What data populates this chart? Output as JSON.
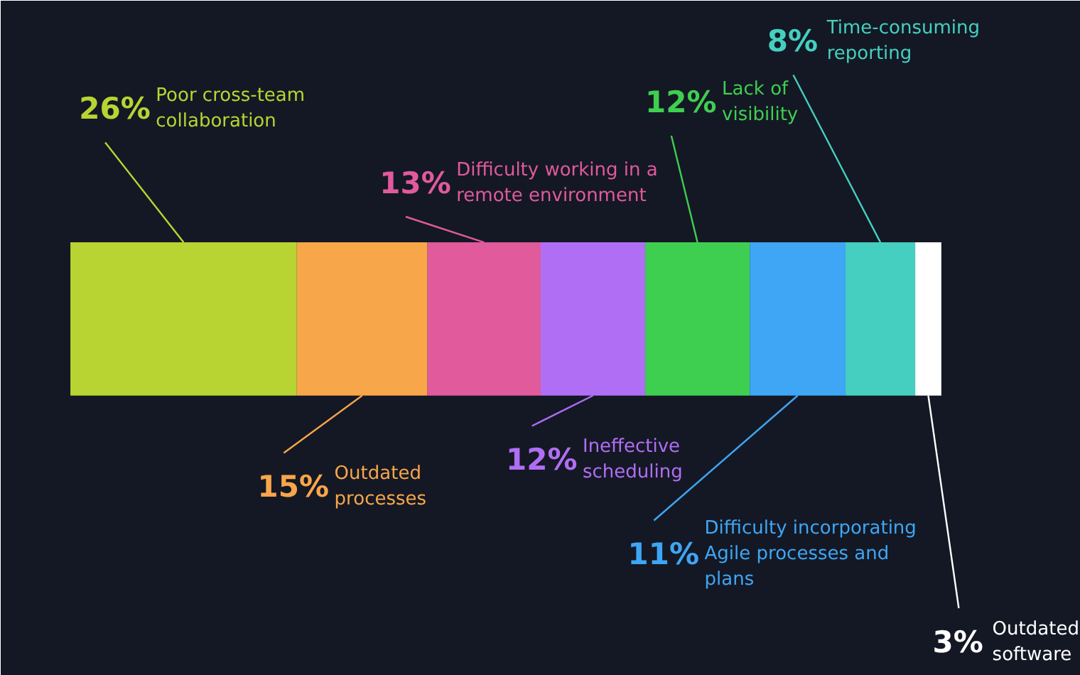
{
  "chart_data": {
    "type": "bar",
    "orientation": "horizontal",
    "stacked": true,
    "categories": [
      null
    ],
    "series": [
      {
        "name": "Poor cross-team collaboration",
        "color": "#b8d432",
        "values": [
          26
        ],
        "value_labels": [
          "26%"
        ]
      },
      {
        "name": "Outdated processes",
        "color": "#f7a64a",
        "values": [
          15
        ],
        "value_labels": [
          "15%"
        ]
      },
      {
        "name": "Difficulty working in a remote environment",
        "color": "#e05a9c",
        "values": [
          13
        ],
        "value_labels": [
          "13%"
        ]
      },
      {
        "name": "Ineffective scheduling",
        "color": "#b06ef5",
        "values": [
          12
        ],
        "value_labels": [
          "12%"
        ]
      },
      {
        "name": "Lack of visibility",
        "color": "#3ecf50",
        "values": [
          12
        ],
        "value_labels": [
          "12%"
        ]
      },
      {
        "name": "Difficulty incorporating Agile processes and plans",
        "color": "#3ea6f5",
        "values": [
          11
        ],
        "value_labels": [
          "11%"
        ]
      },
      {
        "name": "Time-consuming reporting",
        "color": "#45cfc0",
        "values": [
          8
        ],
        "value_labels": [
          "8%"
        ]
      },
      {
        "name": "Outdated software",
        "color": "#ffffff",
        "values": [
          3
        ],
        "value_labels": [
          "3%"
        ]
      }
    ]
  }
}
